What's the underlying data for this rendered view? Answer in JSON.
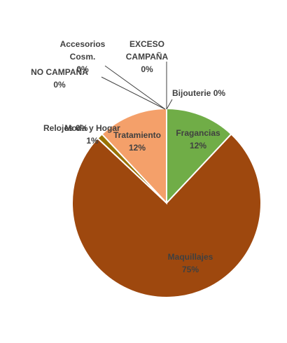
{
  "chart_data": {
    "type": "pie",
    "categories": [
      "Bijouterie",
      "Fragancias",
      "Maquillajes",
      "Relojes",
      "Moda y Hogar",
      "Tratamiento",
      "NO CAMPAÑA",
      "Accesorios Cosm.",
      "EXCESO CAMPAÑA"
    ],
    "values": [
      0,
      12,
      75,
      0,
      1,
      12,
      0,
      0,
      0
    ],
    "value_labels": [
      "0%",
      "12%",
      "75%",
      "0%",
      "1%",
      "12%",
      "0%",
      "0%",
      "0%"
    ],
    "colors": [
      "#4472c4",
      "#70ad47",
      "#9e480e",
      "#5b9bd5",
      "#997300",
      "#f4a06a",
      "#a5a5a5",
      "#ffc000",
      "#264478"
    ]
  }
}
